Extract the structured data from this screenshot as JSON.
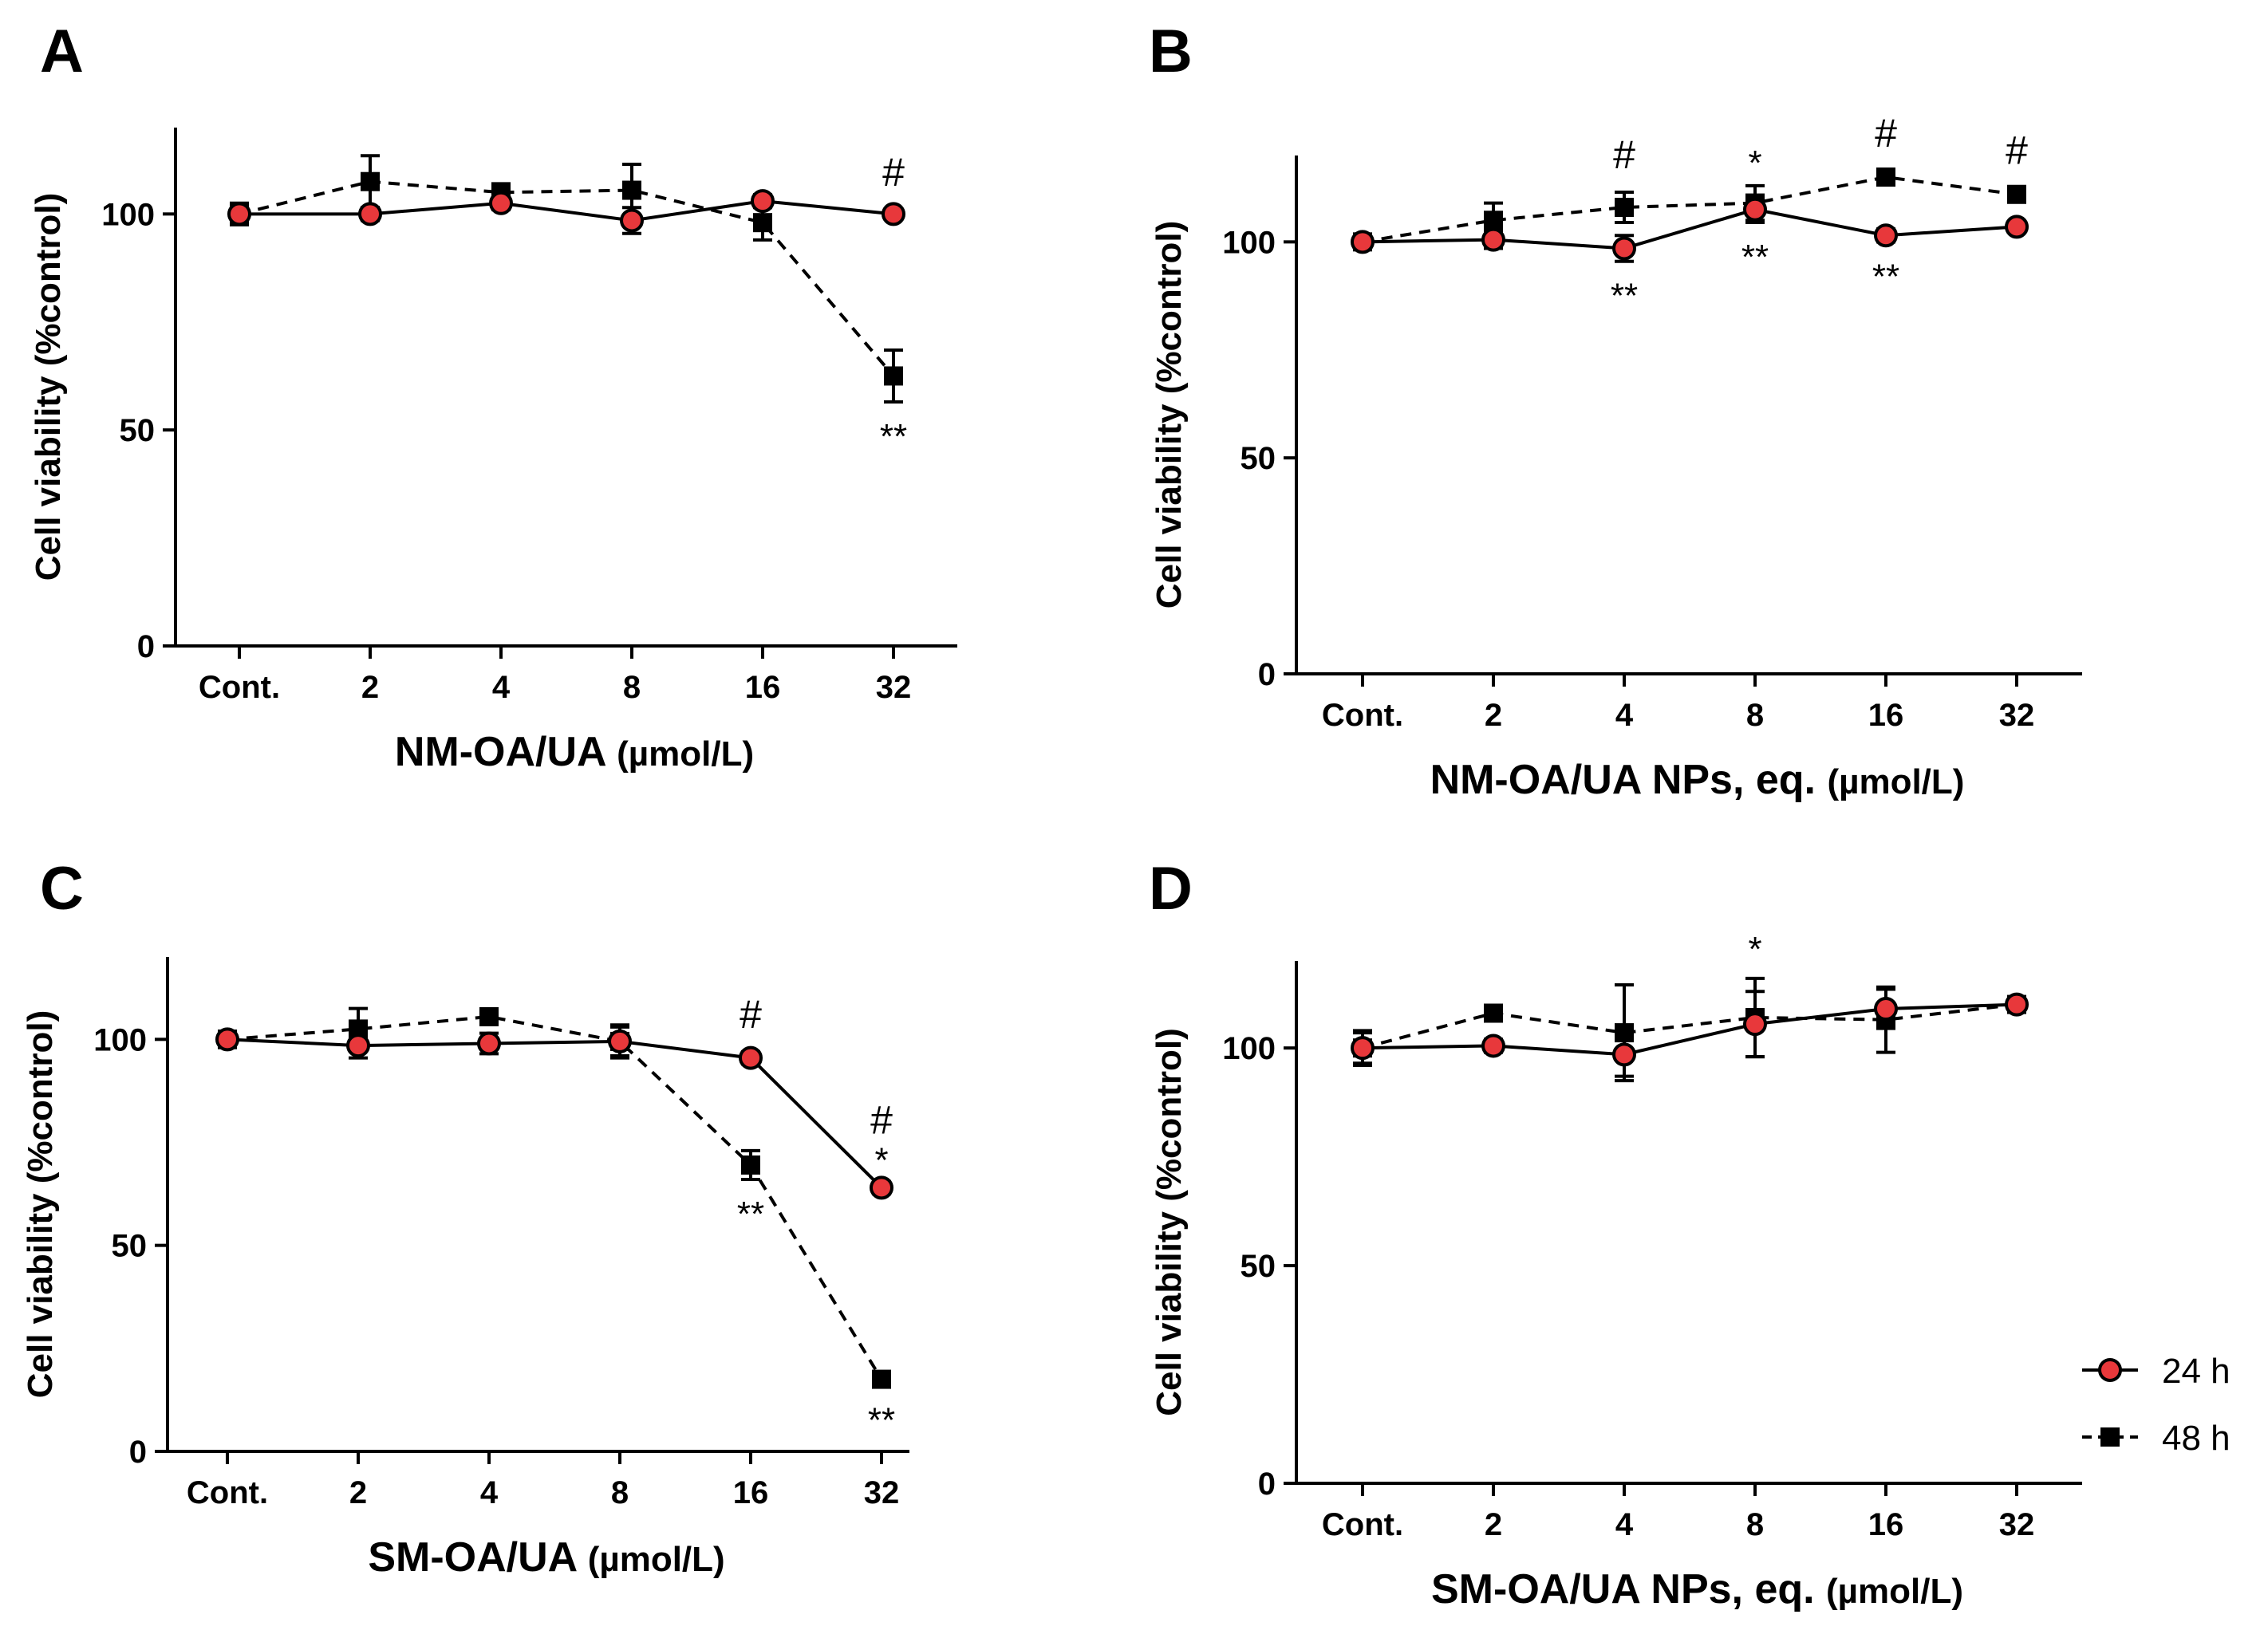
{
  "chart_data": [
    {
      "type": "line",
      "panel": "A",
      "xlabel": "NM-OA/UA",
      "xunit": "(µmol/L)",
      "ylabel": "Cell viability (%control)",
      "categories": [
        "Cont.",
        "2",
        "4",
        "8",
        "16",
        "32"
      ],
      "ylim": [
        0,
        120
      ],
      "yticks": [
        0,
        50,
        100
      ],
      "series": [
        {
          "name": "24 h",
          "values": [
            100,
            100,
            102.5,
            98.5,
            103,
            100
          ],
          "errors": [
            1.5,
            1.5,
            1.5,
            3,
            1.5,
            1
          ]
        },
        {
          "name": "48 h",
          "values": [
            100,
            107.5,
            105,
            105.5,
            98,
            62.5
          ],
          "errors": [
            2.5,
            6,
            2,
            6,
            4,
            6
          ]
        }
      ],
      "annotations": [
        {
          "category": "32",
          "text": "#",
          "position": "above"
        },
        {
          "category": "32",
          "text": "**",
          "position": "below-48h"
        }
      ]
    },
    {
      "type": "line",
      "panel": "B",
      "xlabel": "NM-OA/UA NPs, eq.",
      "xunit": "(µmol/L)",
      "ylabel": "Cell viability (%control)",
      "categories": [
        "Cont.",
        "2",
        "4",
        "8",
        "16",
        "32"
      ],
      "ylim": [
        0,
        120
      ],
      "yticks": [
        0,
        50,
        100
      ],
      "series": [
        {
          "name": "24 h",
          "values": [
            100,
            100.5,
            98.5,
            107.5,
            101.5,
            103.5
          ],
          "errors": [
            1.5,
            2,
            3,
            3,
            1.5,
            1
          ]
        },
        {
          "name": "48 h",
          "values": [
            100,
            105,
            108,
            109,
            115,
            111
          ],
          "errors": [
            1.5,
            4,
            3.5,
            4,
            1.5,
            1.5
          ]
        }
      ],
      "annotations": [
        {
          "category": "4",
          "text": "#",
          "position": "above"
        },
        {
          "category": "16",
          "text": "#",
          "position": "above"
        },
        {
          "category": "32",
          "text": "#",
          "position": "above"
        },
        {
          "category": "8",
          "text": "*",
          "position": "above"
        },
        {
          "category": "4",
          "text": "**",
          "position": "below-24h"
        },
        {
          "category": "8",
          "text": "**",
          "position": "below-24h"
        },
        {
          "category": "16",
          "text": "**",
          "position": "below-24h"
        }
      ]
    },
    {
      "type": "line",
      "panel": "C",
      "xlabel": "SM-OA/UA",
      "xunit": "(µmol/L)",
      "ylabel": "Cell viability (%control)",
      "categories": [
        "Cont.",
        "2",
        "4",
        "8",
        "16",
        "32"
      ],
      "ylim": [
        0,
        120
      ],
      "yticks": [
        0,
        50,
        100
      ],
      "series": [
        {
          "name": "24 h",
          "values": [
            100,
            98.5,
            99,
            99.5,
            95.5,
            64
          ],
          "errors": [
            2,
            3,
            2.5,
            3.5,
            1.5,
            1.5
          ]
        },
        {
          "name": "48 h",
          "values": [
            100,
            102.5,
            105.5,
            99.5,
            69.5,
            17.5
          ],
          "errors": [
            2,
            5,
            1.5,
            4,
            3.5,
            1.5
          ]
        }
      ],
      "annotations": [
        {
          "category": "16",
          "text": "#",
          "position": "above"
        },
        {
          "category": "32",
          "text": "#",
          "position": "above"
        },
        {
          "category": "32",
          "text": "*",
          "position": "above-24h"
        },
        {
          "category": "16",
          "text": "**",
          "position": "below-48h"
        },
        {
          "category": "32",
          "text": "**",
          "position": "below-48h"
        }
      ]
    },
    {
      "type": "line",
      "panel": "D",
      "xlabel": "SM-OA/UA NPs, eq.",
      "xunit": "(µmol/L)",
      "ylabel": "Cell viability (%control)",
      "categories": [
        "Cont.",
        "2",
        "4",
        "8",
        "16",
        "32"
      ],
      "ylim": [
        0,
        120
      ],
      "yticks": [
        0,
        50,
        100
      ],
      "series": [
        {
          "name": "24 h",
          "values": [
            100,
            100.5,
            98.5,
            105.5,
            109,
            110
          ],
          "errors": [
            3.5,
            1.5,
            5,
            7.5,
            4.5,
            1.5
          ]
        },
        {
          "name": "48 h",
          "values": [
            100,
            108,
            103.5,
            107,
            106.5,
            110
          ],
          "errors": [
            4,
            1.5,
            11,
            9,
            7.5,
            1.5
          ]
        }
      ],
      "annotations": [
        {
          "category": "8",
          "text": "*",
          "position": "above"
        }
      ]
    }
  ],
  "legend": {
    "placement": "right-of-panel-D",
    "items": [
      {
        "label": "24 h",
        "marker": "circle",
        "line": "solid",
        "fill": "#e8383b"
      },
      {
        "label": "48 h",
        "marker": "square",
        "line": "dashed",
        "fill": "#000000"
      }
    ]
  },
  "colors": {
    "series_24h_fill": "#e8383b",
    "series_48h_fill": "#000000",
    "axis": "#000000"
  }
}
